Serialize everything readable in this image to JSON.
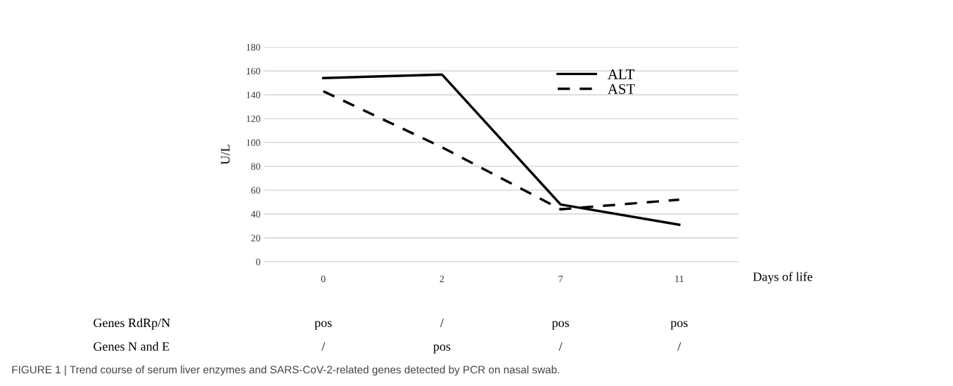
{
  "chart_data": {
    "type": "line",
    "categories": [
      "0",
      "2",
      "7",
      "11"
    ],
    "series": [
      {
        "name": "ALT",
        "color": "#000000",
        "line_style": "solid",
        "values": [
          154,
          157,
          48,
          31
        ]
      },
      {
        "name": "AST",
        "color": "#000000",
        "line_style": "dashed",
        "values": [
          143,
          96,
          44,
          52
        ]
      }
    ],
    "xlabel": "Days of life",
    "ylabel": "U/L",
    "ylim": [
      0,
      180
    ],
    "yticks": [
      0,
      20,
      40,
      60,
      80,
      100,
      120,
      140,
      160,
      180
    ],
    "grid": "y",
    "legend": "top right",
    "marker": "none",
    "annotations": [
      "Genes RdRp/N",
      "pos",
      "/",
      "pos",
      "pos",
      "Genes N and E",
      "/",
      "pos",
      "/",
      "/",
      "FIGURE 1 | Trend course of serum liver enzymes and SARS-CoV-2-related genes detected by PCR on nasal swab."
    ]
  }
}
